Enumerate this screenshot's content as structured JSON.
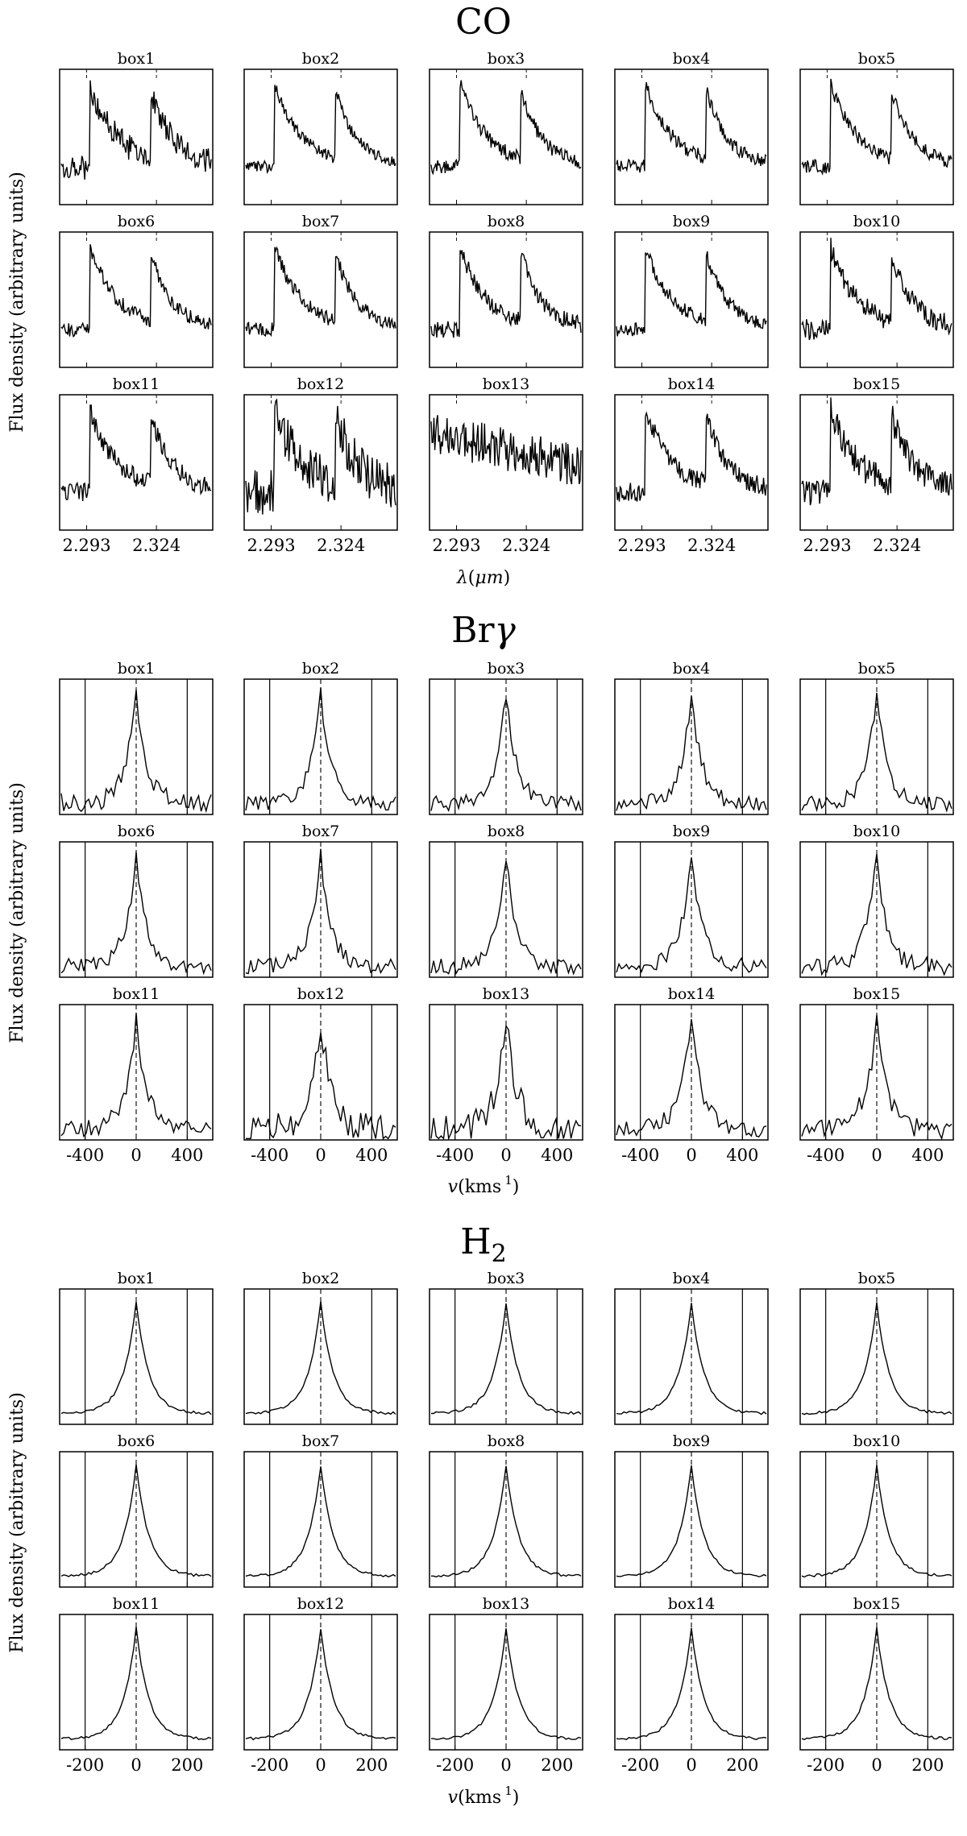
{
  "figure": {
    "y_label": "Flux density (arbitrary units)"
  },
  "chart_data": [
    {
      "type": "line",
      "title": "CO",
      "xlabel": "λ (μm)",
      "xlabel_parts": {
        "symbol": "λ",
        "open": "(",
        "unit": "μm",
        "close": ")"
      },
      "ylabel": "Flux density (arbitrary units)",
      "xlim": [
        2.281,
        2.349
      ],
      "x_ticks": [
        2.293,
        2.324
      ],
      "x_tick_labels": [
        "2.293",
        "2.324"
      ],
      "reference_lines": [
        2.293,
        2.324
      ],
      "reference_style": "thin-dashed",
      "panels": [
        "box1",
        "box2",
        "box3",
        "box4",
        "box5",
        "box6",
        "box7",
        "box8",
        "box9",
        "box10",
        "box11",
        "box12",
        "box13",
        "box14",
        "box15"
      ],
      "profile_kind": "co"
    },
    {
      "type": "line",
      "title": "Brγ",
      "title_parts": {
        "main": "Br",
        "symbol": "γ"
      },
      "xlabel": "v (km s⁻¹)",
      "xlabel_parts": {
        "symbol": "v",
        "open": "(",
        "unit": "kms",
        "sup": "1",
        "close": ")"
      },
      "ylabel": "Flux density (arbitrary units)",
      "xlim": [
        -600,
        600
      ],
      "x_ticks": [
        -400,
        0,
        400
      ],
      "x_tick_labels": [
        "-400",
        "0",
        "400"
      ],
      "reference_lines": [
        -400,
        400
      ],
      "center_line": 0,
      "panels": [
        "box1",
        "box2",
        "box3",
        "box4",
        "box5",
        "box6",
        "box7",
        "box8",
        "box9",
        "box10",
        "box11",
        "box12",
        "box13",
        "box14",
        "box15"
      ],
      "profile_kind": "brg"
    },
    {
      "type": "line",
      "title": "H₂",
      "title_parts": {
        "main": "H",
        "sub": "2"
      },
      "xlabel": "v (km s⁻¹)",
      "xlabel_parts": {
        "symbol": "v",
        "open": "(",
        "unit": "kms",
        "sup": "1",
        "close": ")"
      },
      "ylabel": "Flux density (arbitrary units)",
      "xlim": [
        -300,
        300
      ],
      "x_ticks": [
        -200,
        0,
        200
      ],
      "x_tick_labels": [
        "-200",
        "0",
        "200"
      ],
      "reference_lines": [
        -200,
        200
      ],
      "center_line": 0,
      "panels": [
        "box1",
        "box2",
        "box3",
        "box4",
        "box5",
        "box6",
        "box7",
        "box8",
        "box9",
        "box10",
        "box11",
        "box12",
        "box13",
        "box14",
        "box15"
      ],
      "profile_kind": "h2"
    }
  ]
}
